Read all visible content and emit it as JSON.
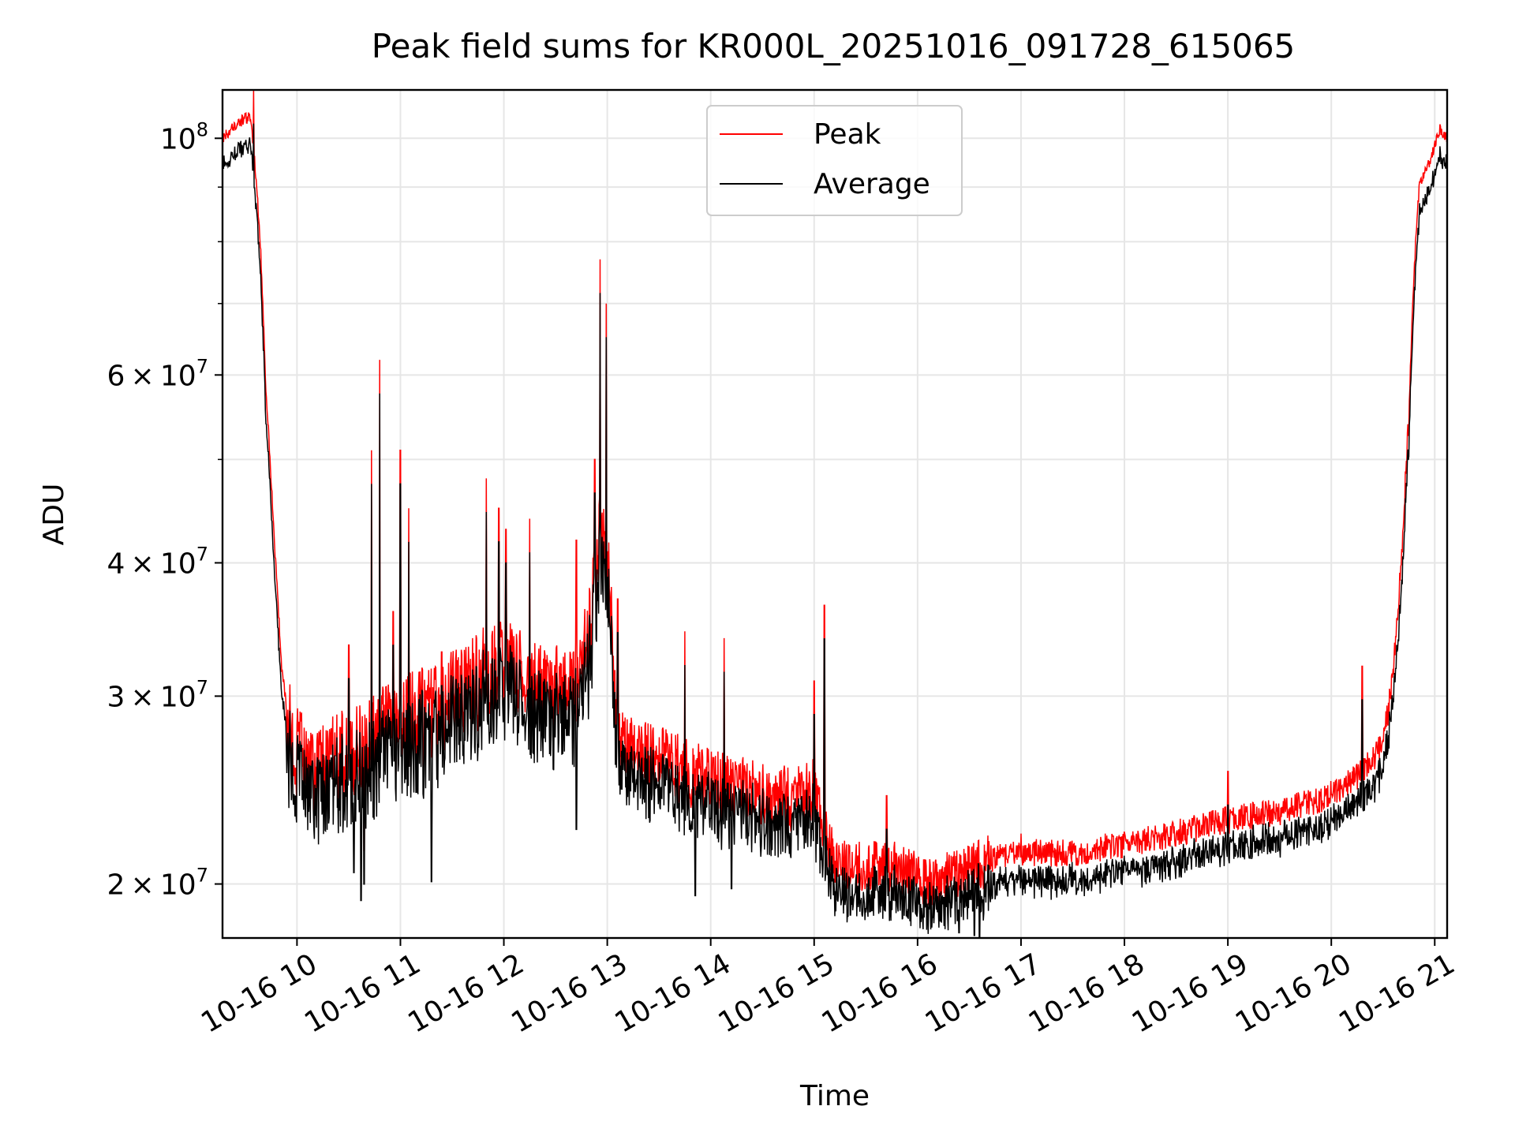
{
  "chart_data": {
    "type": "line",
    "title": "Peak field sums for KR000L_20251016_091728_615065",
    "xlabel": "Time",
    "ylabel": "ADU",
    "yscale": "log",
    "ylim": [
      17800000,
      111000000
    ],
    "xlim": [
      9.28,
      21.12
    ],
    "grid": true,
    "legend_position": "top-center",
    "x_ticks": [
      {
        "value": 10,
        "label": "10-16 10"
      },
      {
        "value": 11,
        "label": "10-16 11"
      },
      {
        "value": 12,
        "label": "10-16 12"
      },
      {
        "value": 13,
        "label": "10-16 13"
      },
      {
        "value": 14,
        "label": "10-16 14"
      },
      {
        "value": 15,
        "label": "10-16 15"
      },
      {
        "value": 16,
        "label": "10-16 16"
      },
      {
        "value": 17,
        "label": "10-16 17"
      },
      {
        "value": 18,
        "label": "10-16 18"
      },
      {
        "value": 19,
        "label": "10-16 19"
      },
      {
        "value": 20,
        "label": "10-16 20"
      },
      {
        "value": 21,
        "label": "10-16 21"
      }
    ],
    "y_major_ticks": [
      {
        "value": 20000000,
        "mantissa": "2",
        "exponent": "7"
      },
      {
        "value": 30000000,
        "mantissa": "3",
        "exponent": "7"
      },
      {
        "value": 40000000,
        "mantissa": "4",
        "exponent": "7"
      },
      {
        "value": 60000000,
        "mantissa": "6",
        "exponent": "7"
      },
      {
        "value": 100000000,
        "mantissa": "",
        "exponent": "8"
      }
    ],
    "y_minor_ticks": [
      50000000,
      70000000,
      80000000,
      90000000
    ],
    "series": [
      {
        "name": "Peak",
        "color": "#ff0000",
        "baseline_anchors": [
          [
            9.28,
            100000000
          ],
          [
            9.4,
            103000000
          ],
          [
            9.55,
            105000000
          ],
          [
            9.6,
            93000000
          ],
          [
            9.65,
            78000000
          ],
          [
            9.7,
            58000000
          ],
          [
            9.78,
            42000000
          ],
          [
            9.85,
            32000000
          ],
          [
            9.92,
            28000000
          ],
          [
            10.0,
            26500000
          ],
          [
            10.2,
            25500000
          ],
          [
            10.5,
            26500000
          ],
          [
            10.7,
            27000000
          ],
          [
            10.9,
            28000000
          ],
          [
            11.0,
            28500000
          ],
          [
            11.3,
            29000000
          ],
          [
            11.6,
            30500000
          ],
          [
            11.8,
            31500000
          ],
          [
            12.0,
            32000000
          ],
          [
            12.3,
            30500000
          ],
          [
            12.6,
            30000000
          ],
          [
            12.75,
            31000000
          ],
          [
            12.85,
            36000000
          ],
          [
            12.95,
            44000000
          ],
          [
            13.02,
            38000000
          ],
          [
            13.08,
            27500000
          ],
          [
            13.3,
            26500000
          ],
          [
            13.6,
            26000000
          ],
          [
            13.8,
            25500000
          ],
          [
            14.0,
            25000000
          ],
          [
            14.3,
            24500000
          ],
          [
            14.6,
            24200000
          ],
          [
            14.8,
            24000000
          ],
          [
            15.0,
            24500000
          ],
          [
            15.1,
            22500000
          ],
          [
            15.2,
            21000000
          ],
          [
            15.5,
            20800000
          ],
          [
            15.8,
            20800000
          ],
          [
            16.0,
            20300000
          ],
          [
            16.2,
            20100000
          ],
          [
            16.4,
            20600000
          ],
          [
            16.6,
            20900000
          ],
          [
            16.8,
            21300000
          ],
          [
            17.0,
            21400000
          ],
          [
            17.5,
            21400000
          ],
          [
            18.0,
            21800000
          ],
          [
            18.5,
            22300000
          ],
          [
            19.0,
            23000000
          ],
          [
            19.5,
            23400000
          ],
          [
            19.9,
            24000000
          ],
          [
            20.1,
            24600000
          ],
          [
            20.3,
            25500000
          ],
          [
            20.45,
            26500000
          ],
          [
            20.55,
            29000000
          ],
          [
            20.6,
            32000000
          ],
          [
            20.68,
            40000000
          ],
          [
            20.75,
            55000000
          ],
          [
            20.8,
            75000000
          ],
          [
            20.85,
            90000000
          ],
          [
            20.95,
            95000000
          ],
          [
            21.05,
            102000000
          ],
          [
            21.12,
            100000000
          ]
        ],
        "spikes": [
          [
            9.58,
            111000000
          ],
          [
            10.5,
            33500000
          ],
          [
            10.65,
            21500000
          ],
          [
            10.72,
            51000000
          ],
          [
            10.8,
            62000000
          ],
          [
            10.93,
            36000000
          ],
          [
            11.0,
            51000000
          ],
          [
            11.08,
            45000000
          ],
          [
            11.4,
            33000000
          ],
          [
            11.83,
            48000000
          ],
          [
            11.95,
            45000000
          ],
          [
            12.02,
            43000000
          ],
          [
            12.25,
            44000000
          ],
          [
            12.7,
            42000000
          ],
          [
            12.88,
            50000000
          ],
          [
            12.93,
            77000000
          ],
          [
            12.99,
            70000000
          ],
          [
            13.1,
            37000000
          ],
          [
            13.75,
            34500000
          ],
          [
            14.13,
            34000000
          ],
          [
            15.0,
            31000000
          ],
          [
            15.1,
            36500000
          ],
          [
            15.7,
            24200000
          ],
          [
            17.0,
            22300000
          ],
          [
            19.0,
            25500000
          ],
          [
            20.3,
            32000000
          ]
        ]
      },
      {
        "name": "Average",
        "color": "#000000",
        "offset_ratio": 0.955,
        "dips": [
          [
            10.55,
            20500000
          ],
          [
            10.62,
            19300000
          ],
          [
            11.3,
            20100000
          ],
          [
            12.7,
            22500000
          ],
          [
            13.85,
            19500000
          ],
          [
            14.2,
            19800000
          ],
          [
            15.35,
            18700000
          ],
          [
            15.9,
            18600000
          ],
          [
            16.4,
            18000000
          ],
          [
            16.55,
            17900000
          ],
          [
            16.6,
            17800000
          ]
        ]
      }
    ]
  }
}
